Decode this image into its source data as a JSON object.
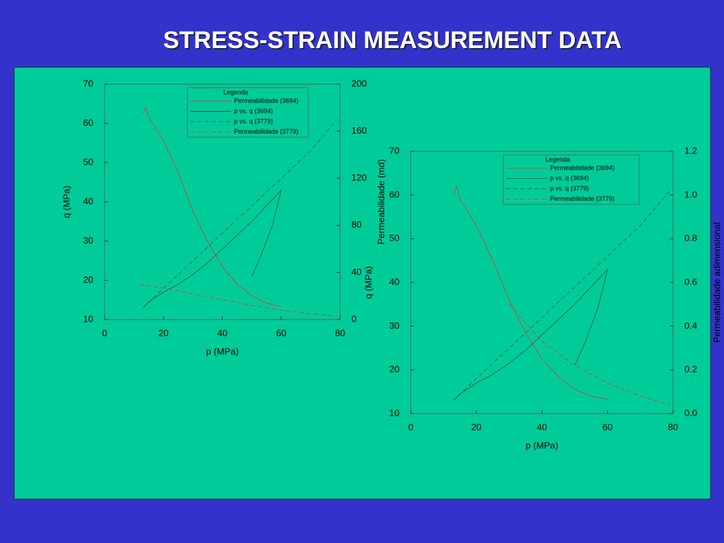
{
  "slide": {
    "title": "STRESS-STRAIN MEASUREMENT DATA"
  },
  "chart_data": [
    {
      "type": "line",
      "xlabel": "p (MPa)",
      "ylabel": "q (MPa)",
      "y2label": "Permeabilidade (md)",
      "y2color": "#cc2222",
      "xlim": [
        0,
        80
      ],
      "xticks": [
        0,
        20,
        40,
        60,
        80
      ],
      "ylim": [
        10,
        70
      ],
      "yticks": [
        10,
        20,
        30,
        40,
        50,
        60,
        70
      ],
      "y2lim": [
        0,
        200
      ],
      "y2ticks": [
        0,
        40,
        80,
        120,
        160,
        200
      ],
      "legend_title": "Legenda",
      "legend": "top-right",
      "series": [
        {
          "name": "Permeabilidade (3694)",
          "color": "#b05050",
          "dash": false,
          "axis": "y2",
          "x": [
            13,
            14,
            15,
            20,
            25,
            30,
            35,
            40,
            45,
            50,
            55,
            60
          ],
          "values": [
            175,
            180,
            172,
            152,
            125,
            92,
            66,
            45,
            30,
            20,
            14,
            11
          ]
        },
        {
          "name": "p vs. q (3694)",
          "color": "#2a6a50",
          "dash": false,
          "axis": "y",
          "x": [
            13,
            15,
            20,
            25,
            30,
            35,
            40,
            45,
            50,
            55,
            60,
            57,
            53,
            50
          ],
          "values": [
            13,
            14.5,
            17,
            19,
            21.5,
            24.5,
            28,
            31.5,
            35,
            39,
            43,
            34,
            26,
            21
          ]
        },
        {
          "name": "p vs. q (3779)",
          "color": "#2a6a50",
          "dash": true,
          "axis": "y",
          "x": [
            13,
            20,
            30,
            40,
            50,
            60,
            70,
            79
          ],
          "values": [
            13,
            18,
            25,
            32,
            39,
            46,
            53,
            61
          ]
        },
        {
          "name": "Permeabilidade (3779)",
          "color": "#b05050",
          "dash": true,
          "axis": "y2",
          "x": [
            12,
            20,
            30,
            40,
            50,
            60,
            70,
            79
          ],
          "values": [
            30,
            27,
            22,
            17,
            12,
            8,
            5,
            3
          ]
        }
      ]
    },
    {
      "type": "line",
      "xlabel": "p (MPa)",
      "ylabel": "q (MPa)",
      "y2label": "Permeabilidade adimensional",
      "y2color": "#cc2222",
      "xlim": [
        0,
        80
      ],
      "xticks": [
        0,
        20,
        40,
        60,
        80
      ],
      "ylim": [
        10,
        70
      ],
      "yticks": [
        10,
        20,
        30,
        40,
        50,
        60,
        70
      ],
      "y2lim": [
        0,
        1.2
      ],
      "y2ticks": [
        {
          "value": 0,
          "label": "0.0"
        },
        0.2,
        0.4,
        0.6,
        0.8,
        {
          "value": 1,
          "label": "1.0"
        },
        1.2
      ],
      "legend_title": "Legenda",
      "legend": "top-right",
      "series": [
        {
          "name": "Permeabilidade (3694)",
          "color": "#b05050",
          "dash": false,
          "axis": "y2",
          "x": [
            13,
            14,
            15,
            20,
            25,
            30,
            35,
            40,
            45,
            50,
            55,
            60
          ],
          "values": [
            1.0,
            1.04,
            0.98,
            0.86,
            0.7,
            0.52,
            0.37,
            0.25,
            0.17,
            0.11,
            0.08,
            0.065
          ]
        },
        {
          "name": "p vs. q (3694)",
          "color": "#2a6a50",
          "dash": false,
          "axis": "y",
          "x": [
            13,
            15,
            20,
            25,
            30,
            35,
            40,
            45,
            50,
            55,
            60,
            57,
            53,
            50
          ],
          "values": [
            13,
            14.5,
            17,
            19,
            21.5,
            24.5,
            28,
            31.5,
            35,
            39,
            43,
            34,
            26,
            21
          ]
        },
        {
          "name": "p vs. q (3779)",
          "color": "#2a6a50",
          "dash": true,
          "axis": "y",
          "x": [
            13,
            20,
            30,
            40,
            50,
            60,
            70,
            79
          ],
          "values": [
            13,
            18,
            25,
            32,
            39,
            46,
            53,
            61
          ]
        },
        {
          "name": "Permeabilidade (3779)",
          "color": "#b05050",
          "dash": true,
          "axis": "y2",
          "x": [
            30,
            40,
            50,
            60,
            70,
            79
          ],
          "values": [
            0.5,
            0.33,
            0.22,
            0.14,
            0.08,
            0.04
          ]
        }
      ]
    }
  ]
}
